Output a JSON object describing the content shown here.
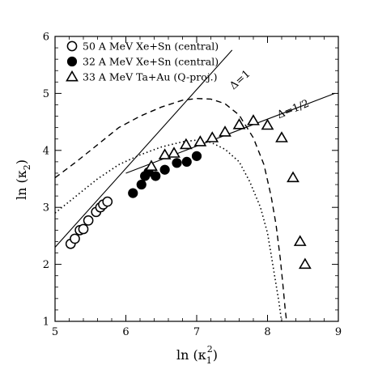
{
  "chart_data": {
    "type": "scatter",
    "xlabel_main": "ln (κ",
    "xlabel_sub": "1",
    "xlabel_sup": "2",
    "xlabel_end": ")",
    "ylabel_main": "ln (κ",
    "ylabel_sub": "2",
    "ylabel_end": ")",
    "xlim": [
      5,
      9
    ],
    "ylim": [
      1,
      6
    ],
    "xticks": [
      5,
      6,
      7,
      8,
      9
    ],
    "yticks": [
      1,
      2,
      3,
      4,
      5,
      6
    ],
    "legend_position": "top-left",
    "series": [
      {
        "name": "50 A MeV  Xe+Sn (central)",
        "marker": "open-circle",
        "x": [
          5.22,
          5.28,
          5.35,
          5.4,
          5.47,
          5.58,
          5.64,
          5.68,
          5.74
        ],
        "y": [
          2.36,
          2.45,
          2.6,
          2.62,
          2.77,
          2.92,
          3.0,
          3.05,
          3.1
        ]
      },
      {
        "name": "32 A MeV  Xe+Sn (central)",
        "marker": "filled-circle",
        "x": [
          6.1,
          6.22,
          6.27,
          6.32,
          6.42,
          6.55,
          6.72,
          6.86,
          7.0
        ],
        "y": [
          3.25,
          3.4,
          3.55,
          3.62,
          3.55,
          3.66,
          3.78,
          3.8,
          3.9
        ]
      },
      {
        "name": "33 A MeV  Ta+Au (Q-proj.)",
        "marker": "open-triangle",
        "x": [
          6.36,
          6.55,
          6.68,
          6.85,
          7.05,
          7.22,
          7.4,
          7.6,
          7.8,
          8.0,
          8.2,
          8.36,
          8.46,
          8.53
        ],
        "y": [
          3.72,
          3.92,
          3.95,
          4.1,
          4.15,
          4.22,
          4.32,
          4.45,
          4.52,
          4.44,
          4.22,
          3.52,
          2.4,
          2.0
        ]
      }
    ],
    "lines": [
      {
        "name": "Δ=1",
        "x": [
          5.0,
          7.5
        ],
        "y": [
          2.3,
          5.76
        ]
      },
      {
        "name": "Δ=1/2",
        "x": [
          6.0,
          8.95
        ],
        "y": [
          3.6,
          5.0
        ]
      }
    ],
    "dashed_curve": {
      "x": [
        5.0,
        5.3,
        5.6,
        5.9,
        6.2,
        6.5,
        6.8,
        7.0,
        7.2,
        7.4,
        7.6,
        7.8,
        7.95,
        8.05,
        8.12,
        8.18,
        8.22,
        8.25,
        8.27
      ],
      "y": [
        3.52,
        3.8,
        4.1,
        4.4,
        4.6,
        4.76,
        4.88,
        4.91,
        4.9,
        4.82,
        4.62,
        4.22,
        3.75,
        3.2,
        2.7,
        2.1,
        1.6,
        1.2,
        1.0
      ]
    },
    "dotted_curve": {
      "x": [
        5.0,
        5.3,
        5.6,
        5.9,
        6.2,
        6.5,
        6.8,
        7.0,
        7.2,
        7.4,
        7.6,
        7.75,
        7.9,
        8.0,
        8.06,
        8.12,
        8.16,
        8.19,
        8.2
      ],
      "y": [
        2.9,
        3.2,
        3.5,
        3.75,
        3.92,
        4.06,
        4.15,
        4.18,
        4.14,
        4.02,
        3.8,
        3.45,
        3.0,
        2.55,
        2.1,
        1.65,
        1.35,
        1.08,
        1.0
      ]
    },
    "annotations": [
      {
        "text": "Δ=1",
        "x": 7.52,
        "y": 5.06
      },
      {
        "text": "Δ=1/2",
        "x": 8.16,
        "y": 4.56
      }
    ]
  }
}
